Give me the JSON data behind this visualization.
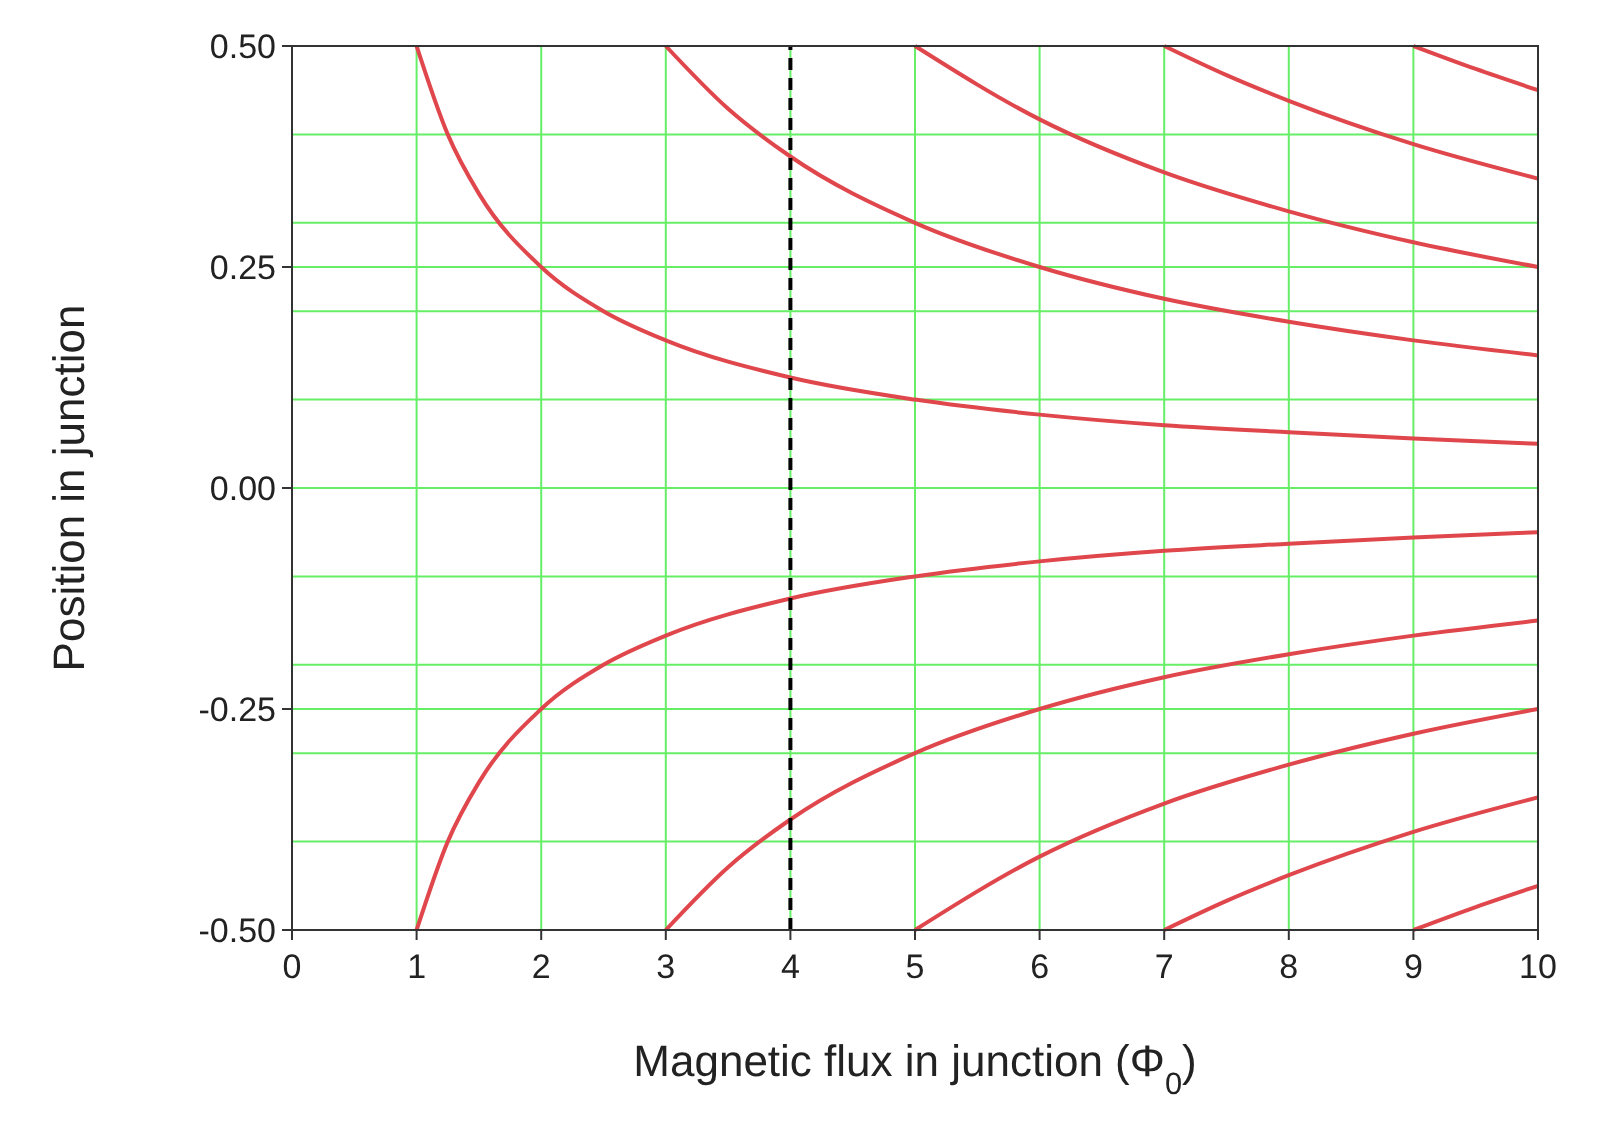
{
  "chart_data": {
    "type": "line",
    "xlabel": "Magnetic flux in junction (Φ$_{0}$)",
    "ylabel": "Position in junction",
    "xlim": [
      0,
      10
    ],
    "xticks": [
      0,
      1,
      2,
      3,
      4,
      5,
      6,
      7,
      8,
      9,
      10
    ],
    "ylim": [
      -0.5,
      0.5
    ],
    "yticks": [
      {
        "value": -0.5,
        "label": "-0.50"
      },
      {
        "value": -0.4,
        "label": null
      },
      {
        "value": -0.3,
        "label": null
      },
      {
        "value": -0.25,
        "label": "-0.25"
      },
      {
        "value": -0.2,
        "label": null
      },
      {
        "value": -0.1,
        "label": null
      },
      {
        "value": 0,
        "label": "0.00"
      },
      {
        "value": 0.1,
        "label": null
      },
      {
        "value": 0.2,
        "label": null
      },
      {
        "value": 0.25,
        "label": "0.25"
      },
      {
        "value": 0.3,
        "label": null
      },
      {
        "value": 0.4,
        "label": null
      },
      {
        "value": 0.5,
        "label": "0.50"
      }
    ],
    "grid": true,
    "line_style": "solid",
    "ref_lines": [
      {
        "axis": "x",
        "value": 4,
        "color": "#000000",
        "line_style": "dashed"
      }
    ],
    "series": [
      {
        "color": "#e0474c",
        "x": [
          1,
          1.25,
          1.5,
          2,
          2.5,
          3,
          4,
          5,
          6,
          7,
          8,
          9,
          10
        ],
        "values": [
          0.5,
          0.4,
          0.333,
          0.25,
          0.2,
          0.167,
          0.125,
          0.1,
          0.083,
          0.071,
          0.063,
          0.056,
          0.05
        ]
      },
      {
        "color": "#e0474c",
        "x": [
          3,
          3.5,
          4,
          5,
          6,
          7,
          8,
          9,
          10
        ],
        "values": [
          0.5,
          0.429,
          0.375,
          0.3,
          0.25,
          0.214,
          0.188,
          0.167,
          0.15
        ]
      },
      {
        "color": "#e0474c",
        "x": [
          5,
          6,
          7,
          8,
          9,
          10
        ],
        "values": [
          0.5,
          0.417,
          0.357,
          0.313,
          0.278,
          0.25
        ]
      },
      {
        "color": "#e0474c",
        "x": [
          7,
          7.5,
          8,
          9,
          10
        ],
        "values": [
          0.5,
          0.467,
          0.438,
          0.389,
          0.35
        ]
      },
      {
        "color": "#e0474c",
        "x": [
          9,
          9.5,
          10
        ],
        "values": [
          0.5,
          0.474,
          0.45
        ]
      },
      {
        "color": "#e0474c",
        "x": [
          1,
          1.25,
          1.5,
          2,
          2.5,
          3,
          4,
          5,
          6,
          7,
          8,
          9,
          10
        ],
        "values": [
          -0.5,
          -0.4,
          -0.333,
          -0.25,
          -0.2,
          -0.167,
          -0.125,
          -0.1,
          -0.083,
          -0.071,
          -0.063,
          -0.056,
          -0.05
        ]
      },
      {
        "color": "#e0474c",
        "x": [
          3,
          3.5,
          4,
          5,
          6,
          7,
          8,
          9,
          10
        ],
        "values": [
          -0.5,
          -0.429,
          -0.375,
          -0.3,
          -0.25,
          -0.214,
          -0.188,
          -0.167,
          -0.15
        ]
      },
      {
        "color": "#e0474c",
        "x": [
          5,
          6,
          7,
          8,
          9,
          10
        ],
        "values": [
          -0.5,
          -0.417,
          -0.357,
          -0.313,
          -0.278,
          -0.25
        ]
      },
      {
        "color": "#e0474c",
        "x": [
          7,
          7.5,
          8,
          9,
          10
        ],
        "values": [
          -0.5,
          -0.467,
          -0.438,
          -0.389,
          -0.35
        ]
      },
      {
        "color": "#e0474c",
        "x": [
          9,
          9.5,
          10
        ],
        "values": [
          -0.5,
          -0.474,
          -0.45
        ]
      }
    ]
  }
}
